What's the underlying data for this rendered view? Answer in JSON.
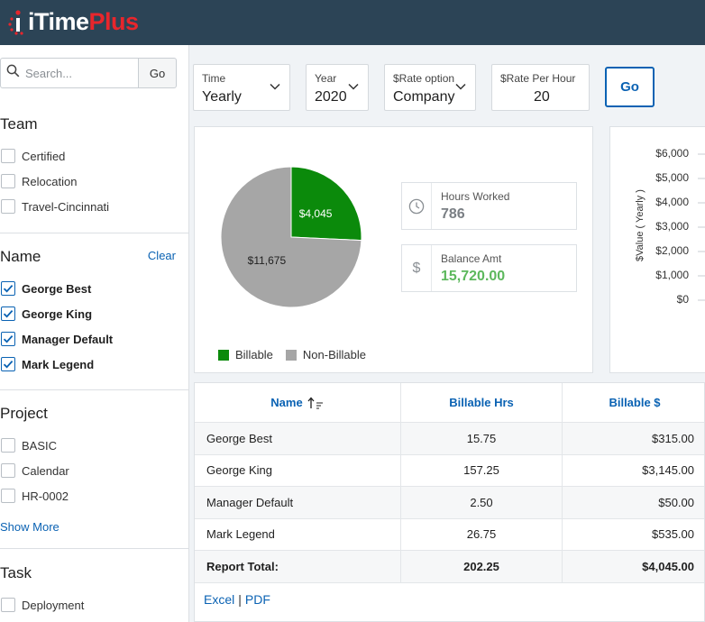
{
  "app": {
    "logo_part1": "iTime",
    "logo_part2": "Plus"
  },
  "sidebar": {
    "search": {
      "placeholder": "Search...",
      "go_label": "Go"
    },
    "team": {
      "title": "Team",
      "options": [
        {
          "label": "Certified",
          "checked": false
        },
        {
          "label": "Relocation",
          "checked": false
        },
        {
          "label": "Travel-Cincinnati",
          "checked": false
        }
      ]
    },
    "name": {
      "title": "Name",
      "clear_label": "Clear",
      "options": [
        {
          "label": "George Best",
          "checked": true
        },
        {
          "label": "George King",
          "checked": true
        },
        {
          "label": "Manager Default",
          "checked": true
        },
        {
          "label": "Mark Legend",
          "checked": true
        }
      ]
    },
    "project": {
      "title": "Project",
      "options": [
        {
          "label": "BASIC",
          "checked": false
        },
        {
          "label": "Calendar",
          "checked": false
        },
        {
          "label": "HR-0002",
          "checked": false
        }
      ],
      "show_more": "Show More"
    },
    "task": {
      "title": "Task",
      "options": [
        {
          "label": "Deployment",
          "checked": false
        }
      ]
    }
  },
  "filters": {
    "time": {
      "label": "Time",
      "value": "Yearly"
    },
    "year": {
      "label": "Year",
      "value": "2020"
    },
    "rate_option": {
      "label": "$Rate option",
      "value": "Company"
    },
    "rate_per_hour": {
      "label": "$Rate Per Hour",
      "value": "20"
    },
    "go_label": "Go"
  },
  "stats": {
    "hours_worked": {
      "label": "Hours Worked",
      "value": "786"
    },
    "balance_amt": {
      "label": "Balance Amt",
      "value": "15,720.00",
      "color": "#5cb85c"
    }
  },
  "chart_data": [
    {
      "type": "pie",
      "slices": [
        {
          "label": "Billable",
          "value": 4045,
          "display": "$4,045",
          "color": "#0b8a0b"
        },
        {
          "label": "Non-Billable",
          "value": 11675,
          "display": "$11,675",
          "color": "#a6a6a6"
        }
      ],
      "legend": [
        "Billable",
        "Non-Billable"
      ],
      "legend_position": "bottom"
    },
    {
      "type": "bar",
      "ylabel": "$Value ( Yearly )",
      "yticks": [
        "$6,000",
        "$5,000",
        "$4,000",
        "$3,000",
        "$2,000",
        "$1,000",
        "$0"
      ],
      "ylim": [
        0,
        6000
      ]
    }
  ],
  "table": {
    "headers": {
      "name": "Name",
      "billable_hrs": "Billable Hrs",
      "billable_amt": "Billable $"
    },
    "rows": [
      {
        "name": "George Best",
        "hrs": "15.75",
        "amt": "$315.00"
      },
      {
        "name": "George King",
        "hrs": "157.25",
        "amt": "$3,145.00"
      },
      {
        "name": "Manager Default",
        "hrs": "2.50",
        "amt": "$50.00"
      },
      {
        "name": "Mark Legend",
        "hrs": "26.75",
        "amt": "$535.00"
      }
    ],
    "total": {
      "label": "Report Total:",
      "hrs": "202.25",
      "amt": "$4,045.00"
    },
    "export": {
      "excel": "Excel",
      "separator": "|",
      "pdf": "PDF"
    }
  },
  "colors": {
    "header_bg": "#2c4456",
    "accent": "#0a62b3",
    "brand_red": "#e8262c"
  }
}
